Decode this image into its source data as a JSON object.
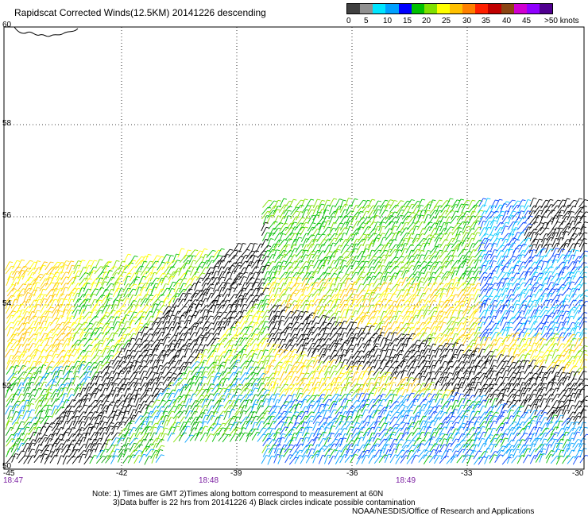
{
  "title": "Rapidscat Corrected Winds(12.5KM) 20141226 descending",
  "colorbar": {
    "colors": [
      "#404040",
      "#909090",
      "#00e5ff",
      "#00a0ff",
      "#0000ff",
      "#00c000",
      "#80e000",
      "#ffff00",
      "#ffc000",
      "#ff8000",
      "#ff2000",
      "#c00000",
      "#8b4513",
      "#d000d0",
      "#9000ff",
      "#500090"
    ],
    "labels": [
      "0",
      "5",
      "10",
      "15",
      "20",
      "25",
      "30",
      "35",
      "40",
      "45",
      ">50 knots"
    ]
  },
  "map": {
    "latitudes": [
      "60",
      "58",
      "56",
      "54",
      "52",
      "50"
    ],
    "longitudes": [
      "-45",
      "-42",
      "-39",
      "-36",
      "-33",
      "-30"
    ],
    "times": [
      "18:47",
      "18:48",
      "18:49"
    ]
  },
  "notes": {
    "line1": "Note: 1) Times are GMT 2)Times along bottom correspond to measurement at 60N",
    "line2": "3)Data buffer is 22 hrs from 20141226 4) Black circles indicate possible contamination",
    "line3": "NOAA/NESDIS/Office of Research and Applications"
  }
}
